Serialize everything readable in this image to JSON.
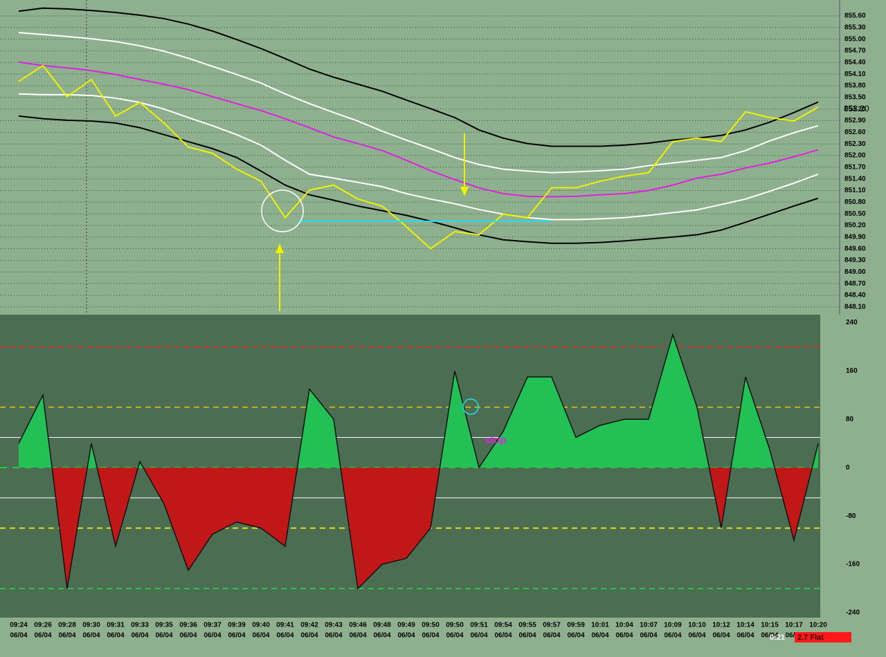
{
  "chart_data": [
    {
      "type": "line",
      "ylim": [
        847.9,
        856.01
      ],
      "yticks": [
        {
          "value": 855.6,
          "label": "855.60"
        },
        {
          "value": 855.3,
          "label": "855.30"
        },
        {
          "value": 855.0,
          "label": "855.00"
        },
        {
          "value": 854.7,
          "label": "854.70"
        },
        {
          "value": 854.4,
          "label": "854.40"
        },
        {
          "value": 854.1,
          "label": "854.10"
        },
        {
          "value": 853.8,
          "label": "853.80"
        },
        {
          "value": 853.5,
          "label": "853.50"
        },
        {
          "value": 853.2,
          "label": "853.20"
        },
        {
          "value": 852.9,
          "label": "852.90"
        },
        {
          "value": 852.6,
          "label": "852.60"
        },
        {
          "value": 852.3,
          "label": "852.30"
        },
        {
          "value": 852.0,
          "label": "852.00"
        },
        {
          "value": 851.7,
          "label": "851.70"
        },
        {
          "value": 851.4,
          "label": "851.40"
        },
        {
          "value": 851.1,
          "label": "851.10"
        },
        {
          "value": 850.8,
          "label": "850.80"
        },
        {
          "value": 850.5,
          "label": "850.50"
        },
        {
          "value": 850.2,
          "label": "850.20"
        },
        {
          "value": 849.9,
          "label": "849.90"
        },
        {
          "value": 849.6,
          "label": "849.60"
        },
        {
          "value": 849.3,
          "label": "849.30"
        },
        {
          "value": 849.0,
          "label": "849.00"
        },
        {
          "value": 848.7,
          "label": "848.70"
        },
        {
          "value": 848.4,
          "label": "848.40"
        },
        {
          "value": 848.1,
          "label": "848.10"
        }
      ],
      "grid": true,
      "last_price": {
        "value": 853.2,
        "label": "853.20"
      },
      "series": [
        {
          "color": "#000000",
          "values": [
            855.72,
            855.8,
            855.78,
            855.74,
            855.69,
            855.62,
            855.53,
            855.39,
            855.21,
            854.99,
            854.76,
            854.5,
            854.23,
            854.02,
            853.84,
            853.66,
            853.43,
            853.21,
            852.98,
            852.66,
            852.45,
            852.31,
            852.24,
            852.24,
            852.24,
            852.27,
            852.32,
            852.4,
            852.45,
            852.52,
            852.66,
            852.86,
            853.11,
            853.38
          ]
        },
        {
          "color": "#ffffff",
          "values": [
            855.17,
            855.12,
            855.07,
            855.01,
            854.94,
            854.83,
            854.69,
            854.51,
            854.3,
            854.09,
            853.87,
            853.59,
            853.34,
            853.11,
            852.89,
            852.63,
            852.4,
            852.18,
            851.95,
            851.77,
            851.65,
            851.6,
            851.56,
            851.58,
            851.61,
            851.65,
            851.74,
            851.81,
            851.88,
            851.95,
            852.13,
            852.38,
            852.59,
            852.77
          ]
        },
        {
          "color": "#e020e0",
          "values": [
            854.41,
            854.32,
            854.26,
            854.19,
            854.09,
            853.96,
            853.84,
            853.7,
            853.52,
            853.34,
            853.16,
            852.95,
            852.72,
            852.48,
            852.31,
            852.13,
            851.88,
            851.61,
            851.38,
            851.17,
            851.02,
            850.95,
            850.94,
            850.95,
            850.99,
            851.02,
            851.1,
            851.24,
            851.42,
            851.52,
            851.68,
            851.81,
            851.97,
            852.15
          ]
        },
        {
          "color": "#ffffff",
          "values": [
            853.59,
            853.57,
            853.57,
            853.55,
            853.48,
            853.37,
            853.2,
            852.98,
            852.77,
            852.54,
            852.27,
            851.88,
            851.52,
            851.42,
            851.31,
            851.2,
            851.02,
            850.88,
            850.76,
            850.61,
            850.49,
            850.4,
            850.35,
            850.35,
            850.37,
            850.4,
            850.46,
            850.53,
            850.6,
            850.74,
            850.88,
            851.08,
            851.29,
            851.52
          ]
        },
        {
          "color": "#000000",
          "values": [
            853.02,
            852.95,
            852.91,
            852.89,
            852.84,
            852.72,
            852.54,
            852.36,
            852.18,
            851.95,
            851.6,
            851.24,
            850.99,
            850.85,
            850.7,
            850.58,
            850.46,
            850.31,
            850.14,
            849.96,
            849.83,
            849.78,
            849.74,
            849.74,
            849.76,
            849.8,
            849.85,
            849.9,
            849.96,
            850.08,
            850.28,
            850.49,
            850.7,
            850.9
          ]
        },
        {
          "color": "#f0f000",
          "values": [
            853.91,
            854.32,
            853.52,
            853.96,
            853.02,
            853.37,
            852.84,
            852.22,
            852.06,
            851.65,
            851.34,
            850.4,
            851.11,
            851.24,
            850.88,
            850.7,
            850.17,
            849.6,
            850.04,
            849.96,
            850.49,
            850.4,
            851.17,
            851.17,
            851.34,
            851.47,
            851.56,
            852.36,
            852.45,
            852.36,
            853.13,
            852.98,
            852.89,
            853.25
          ]
        }
      ]
    },
    {
      "type": "area",
      "categories": [
        "09:24",
        "09:26",
        "09:28",
        "09:30",
        "09:31",
        "09:33",
        "09:35",
        "09:36",
        "09:37",
        "09:39",
        "09:40",
        "09:41",
        "09:42",
        "09:43",
        "09:46",
        "09:48",
        "09:49",
        "09:50",
        "09:50",
        "09:51",
        "09:54",
        "09:55",
        "09:57",
        "09:59",
        "10:01",
        "10:04",
        "10:07",
        "10:09",
        "10:10",
        "10:12",
        "10:14",
        "10:15",
        "10:17",
        "10:20"
      ],
      "dates": [
        "06/04",
        "06/04",
        "06/04",
        "06/04",
        "06/04",
        "06/04",
        "06/04",
        "06/04",
        "06/04",
        "06/04",
        "06/04",
        "06/04",
        "06/04",
        "06/04",
        "06/04",
        "06/04",
        "06/04",
        "06/04",
        "06/04",
        "06/04",
        "06/04",
        "06/04",
        "06/04",
        "06/04",
        "06/04",
        "06/04",
        "06/04",
        "06/04",
        "06/04",
        "06/04",
        "06/04",
        "06/04",
        "06/04",
        "06/04"
      ],
      "ylim": [
        -248,
        253
      ],
      "yticks": [
        240,
        160,
        80,
        0,
        -80,
        -160,
        -240
      ],
      "levels": [
        200,
        100,
        50,
        -50,
        -100,
        -200
      ],
      "positive_color": "#22c055",
      "negative_color": "#c01818",
      "values": [
        40,
        120,
        -200,
        40,
        -130,
        10,
        -60,
        -170,
        -110,
        -90,
        -100,
        -130,
        130,
        80,
        -200,
        -160,
        -150,
        -100,
        160,
        0,
        60,
        150,
        150,
        50,
        70,
        80,
        80,
        220,
        100,
        -100,
        150,
        30,
        -120,
        40
      ],
      "annotation": "stop"
    }
  ],
  "status": {
    "timer": "0:21",
    "position": "2.7 Flat"
  }
}
